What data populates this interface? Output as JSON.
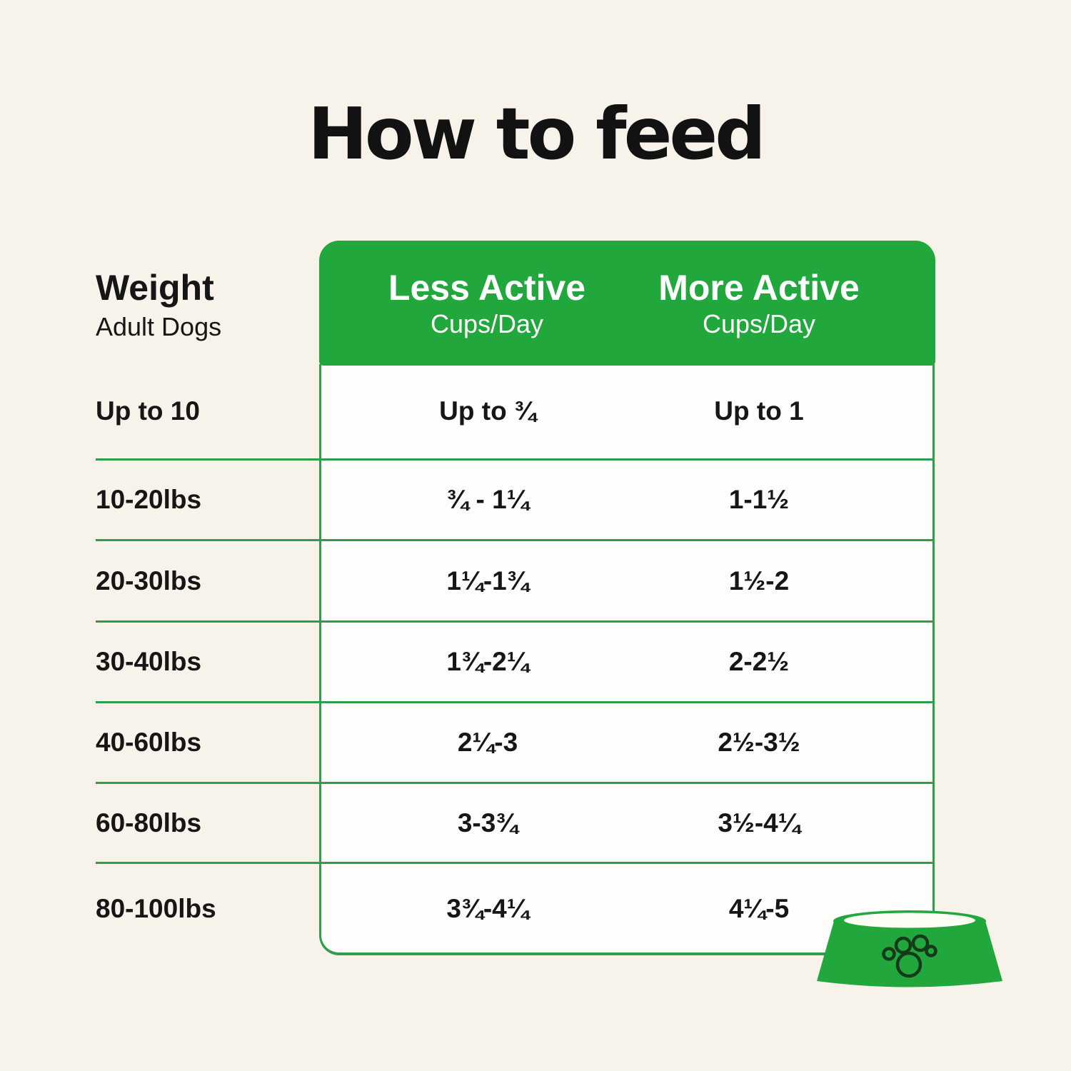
{
  "title": "How to feed",
  "colors": {
    "background": "#f7f3ea",
    "green": "#22a73c",
    "line_green": "#2e9e4c",
    "table_white": "#fdfdfc",
    "text_dark": "#161616",
    "header_text": "#ffffff",
    "paw_stroke": "#143a1c"
  },
  "table": {
    "weight_header": {
      "title": "Weight",
      "subtitle": "Adult Dogs"
    },
    "columns": [
      {
        "label": "Less Active",
        "sublabel": "Cups/Day"
      },
      {
        "label": "More Active",
        "sublabel": "Cups/Day"
      }
    ],
    "rows": [
      {
        "weight": "Up to 10",
        "less_active": "Up to ¾",
        "more_active": "Up to 1"
      },
      {
        "weight": "10-20lbs",
        "less_active": "¾ - 1¼",
        "more_active": "1-1½"
      },
      {
        "weight": "20-30lbs",
        "less_active": "1¼-1¾",
        "more_active": "1½-2"
      },
      {
        "weight": "30-40lbs",
        "less_active": "1¾-2¼",
        "more_active": "2-2½"
      },
      {
        "weight": "40-60lbs",
        "less_active": "2¼-3",
        "more_active": "2½-3½"
      },
      {
        "weight": "60-80lbs",
        "less_active": "3-3¾",
        "more_active": "3½-4¼"
      },
      {
        "weight": "80-100lbs",
        "less_active": "3¾-4¼",
        "more_active": "4¼-5"
      }
    ]
  },
  "icons": {
    "bowl": "dog-bowl-icon",
    "paw": "paw-print-icon"
  },
  "chart_data": {
    "type": "table",
    "title": "How to feed",
    "columns": [
      "Weight (Adult Dogs)",
      "Less Active Cups/Day",
      "More Active Cups/Day"
    ],
    "rows": [
      [
        "Up to 10",
        "Up to ¾",
        "Up to 1"
      ],
      [
        "10-20lbs",
        "¾ - 1¼",
        "1-1½"
      ],
      [
        "20-30lbs",
        "1¼-1¾",
        "1½-2"
      ],
      [
        "30-40lbs",
        "1¾-2¼",
        "2-2½"
      ],
      [
        "40-60lbs",
        "2¼-3",
        "2½-3½"
      ],
      [
        "60-80lbs",
        "3-3¾",
        "3½-4¼"
      ],
      [
        "80-100lbs",
        "3¾-4¼",
        "4¼-5"
      ]
    ]
  }
}
